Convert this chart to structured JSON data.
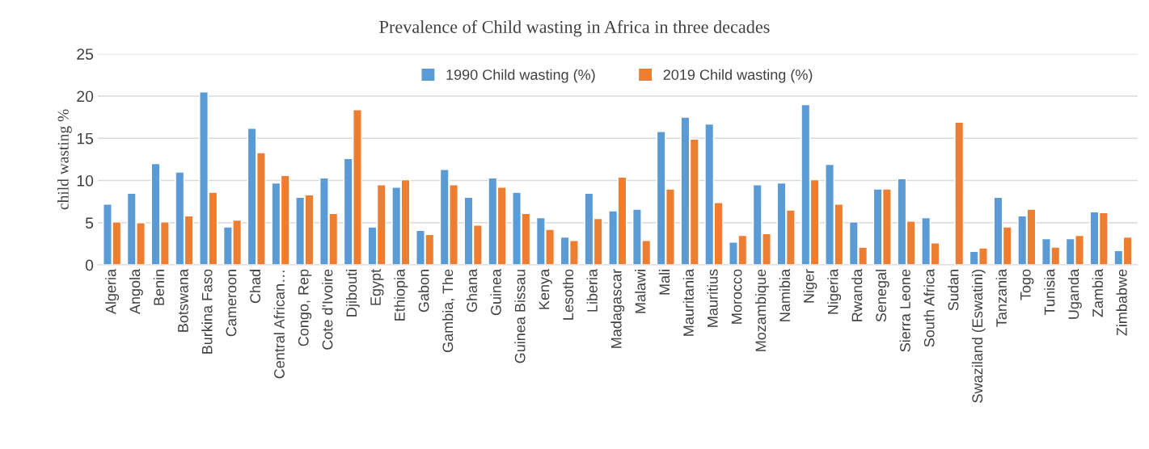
{
  "chart_data": {
    "type": "bar",
    "title": "Prevalence of Child wasting in Africa in three decades",
    "ylabel": "child wasting %",
    "categories": [
      "Algeria",
      "Angola",
      "Benin",
      "Botswana",
      "Burkina Faso",
      "Cameroon",
      "Chad",
      "Central African…",
      "Congo, Rep",
      "Cote d'Ivoire",
      "Djibouti",
      "Egypt",
      "Ethiopia",
      "Gabon",
      "Gambia, The",
      "Ghana",
      "Guinea",
      "Guinea Bissau",
      "Kenya",
      "Lesotho",
      "Liberia",
      "Madagascar",
      "Malawi",
      "Mali",
      "Mauritania",
      "Mauritius",
      "Morocco",
      "Mozambique",
      "Namibia",
      "Niger",
      "Nigeria",
      "Rwanda",
      "Senegal",
      "Sierra Leone",
      "South Africa",
      "Sudan",
      "Swaziland (Eswatini)",
      "Tanzania",
      "Togo",
      "Tunisia",
      "Uganda",
      "Zambia",
      "Zimbabwe"
    ],
    "series": [
      {
        "name": "1990 Child wasting (%)",
        "color": "#5b9bd5",
        "values": [
          7.2,
          8.5,
          12.0,
          11.0,
          20.5,
          4.5,
          16.2,
          9.7,
          8.0,
          10.3,
          12.6,
          4.5,
          9.2,
          4.1,
          11.3,
          8.0,
          10.3,
          8.6,
          5.6,
          3.3,
          8.5,
          6.4,
          6.6,
          15.8,
          17.5,
          16.7,
          2.7,
          9.5,
          9.7,
          19.0,
          11.9,
          5.1,
          9.0,
          10.2,
          5.6,
          null,
          1.6,
          8.0,
          5.8,
          3.1,
          3.1,
          6.3,
          1.7
        ]
      },
      {
        "name": "2019 Child wasting (%)",
        "color": "#ed7d31",
        "values": [
          5.1,
          5.0,
          5.1,
          5.8,
          8.6,
          5.3,
          13.3,
          10.6,
          8.3,
          6.1,
          18.4,
          9.5,
          10.1,
          3.6,
          9.5,
          4.7,
          9.2,
          6.1,
          4.2,
          2.9,
          5.5,
          10.4,
          2.9,
          9.0,
          14.9,
          7.4,
          3.5,
          3.7,
          6.5,
          10.1,
          7.2,
          2.1,
          9.0,
          5.2,
          2.6,
          16.9,
          2.0,
          4.5,
          6.6,
          2.1,
          3.5,
          6.2,
          3.3
        ]
      }
    ],
    "ylim": [
      0,
      25
    ],
    "yticks": [
      0,
      5,
      10,
      15,
      20,
      25
    ],
    "grid": "y",
    "legend": "top"
  }
}
